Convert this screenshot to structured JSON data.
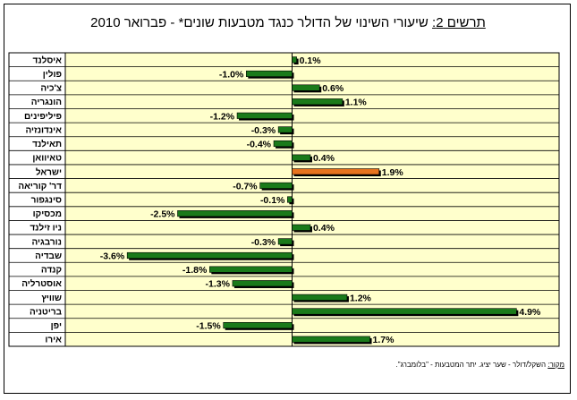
{
  "chart_data": {
    "type": "bar",
    "orientation": "horizontal",
    "title_label": "תרשים 2:",
    "title_text": "שיעורי השינוי של הדולר כנגד מטבעות שונים* - פברואר 2010",
    "categories": [
      "איסלנד",
      "פולין",
      "צ'כיה",
      "הונגריה",
      "פיליפינים",
      "אינדונזיה",
      "תאילנד",
      "טאיוואן",
      "ישראל",
      "דר' קוריאה",
      "סינגפור",
      "מכסיקו",
      "ניו זילנד",
      "נורבגיה",
      "שבדיה",
      "קנדה",
      "אוסטרליה",
      "שוויץ",
      "בריטניה",
      "יפן",
      "אירו"
    ],
    "values": [
      0.1,
      -1.0,
      0.6,
      1.1,
      -1.2,
      -0.3,
      -0.4,
      0.4,
      1.9,
      -0.7,
      -0.1,
      -2.5,
      0.4,
      -0.3,
      -3.6,
      -1.8,
      -1.3,
      1.2,
      4.9,
      -1.5,
      1.7
    ],
    "data_labels": [
      "0.1%",
      "-1.0%",
      "0.6%",
      "1.1%",
      "-1.2%",
      "-0.3%",
      "-0.4%",
      "0.4%",
      "1.9%",
      "-0.7%",
      "-0.1%",
      "-2.5%",
      "0.4%",
      "-0.3%",
      "-3.6%",
      "-1.8%",
      "-1.3%",
      "1.2%",
      "4.9%",
      "-1.5%",
      "1.7%"
    ],
    "highlight_category": "ישראל",
    "xlim": [
      -3.6,
      4.9
    ],
    "grid": "horizontal",
    "colors": {
      "bar": "#1a7a1a",
      "highlight": "#e8731e",
      "plot_bg": "#ffffcc",
      "shadow": "#000000"
    }
  },
  "source_label": "מקור:",
  "source_text": "השקל/דולר - שער יציג. יתר המטבעות - \"בלומברג\"."
}
